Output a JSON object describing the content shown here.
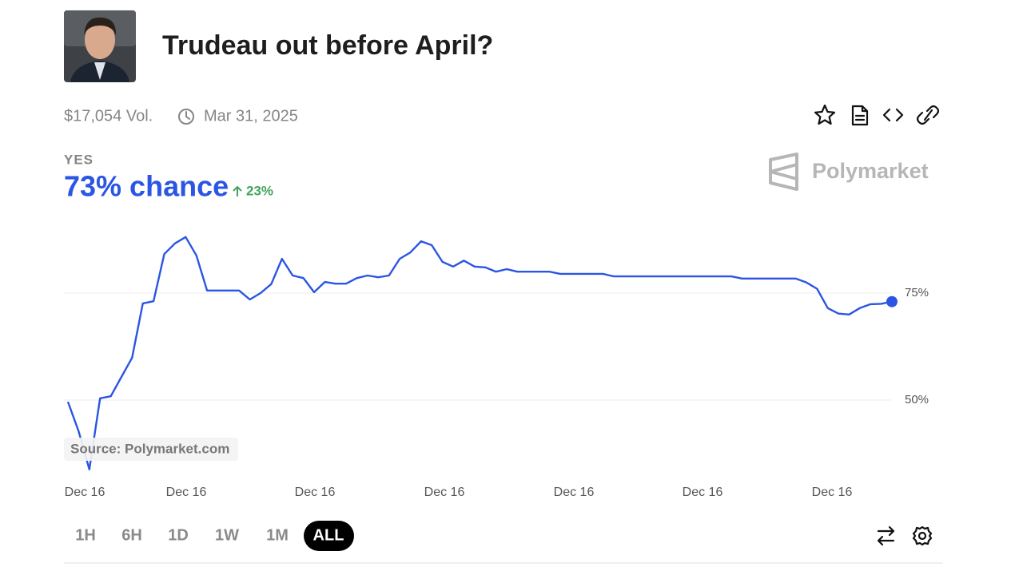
{
  "header": {
    "title": "Trudeau out before April?",
    "volume": "$17,054 Vol.",
    "end_date": "Mar 31, 2025"
  },
  "outcome": {
    "label": "YES",
    "chance": "73% chance",
    "change": "23%"
  },
  "brand": "Polymarket",
  "source": "Source: Polymarket.com",
  "time_ranges": [
    "1H",
    "6H",
    "1D",
    "1W",
    "1M",
    "ALL"
  ],
  "chart_data": {
    "type": "line",
    "color": "#2b55e3",
    "values": [
      49.6,
      42.7,
      33.8,
      50.4,
      50.9,
      55.4,
      59.9,
      72.6,
      73.1,
      84.1,
      86.6,
      88.1,
      83.8,
      75.6,
      75.6,
      75.6,
      75.6,
      73.5,
      75,
      77.1,
      83,
      79.1,
      78.5,
      75.2,
      77.6,
      77.2,
      77.2,
      78.5,
      79.1,
      78.7,
      79.1,
      83,
      84.5,
      87.1,
      86.2,
      82.3,
      81.2,
      82.6,
      81.2,
      81,
      80,
      80.6,
      80,
      80,
      80,
      80,
      79.5,
      79.5,
      79.5,
      79.5,
      79.5,
      78.9,
      78.9,
      78.9,
      78.9,
      78.9,
      78.9,
      78.9,
      78.9,
      78.9,
      78.9,
      78.9,
      78.9,
      78.4,
      78.4,
      78.4,
      78.4,
      78.4,
      78.4,
      77.5,
      76,
      71.5,
      70.2,
      70,
      71.5,
      72.4,
      72.5,
      73
    ],
    "x_labels": [
      "Dec 16",
      "Dec 16",
      "Dec 16",
      "Dec 16",
      "Dec 16",
      "Dec 16",
      "Dec 16"
    ],
    "ylim": [
      33,
      90
    ],
    "yticks": [
      {
        "value": 50,
        "label": "50%"
      },
      {
        "value": 75,
        "label": "75%"
      }
    ],
    "grid": true
  }
}
